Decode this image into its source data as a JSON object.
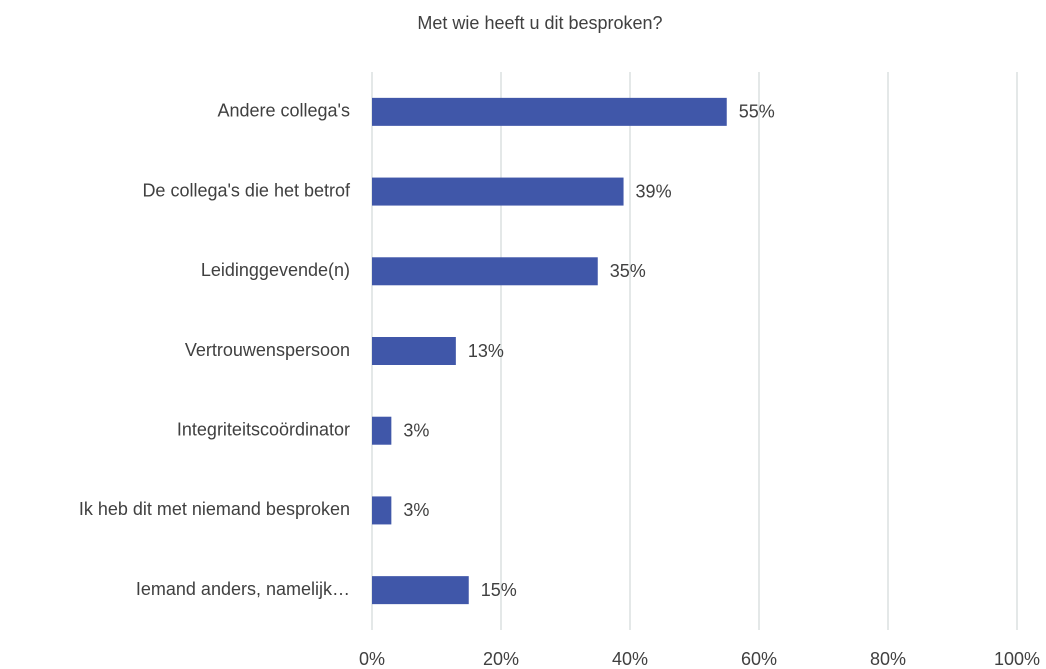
{
  "chart_data": {
    "type": "bar",
    "orientation": "horizontal",
    "title": "Met wie heeft u dit besproken?",
    "categories": [
      "Andere collega's",
      "De collega's die het betrof",
      "Leidinggevende(n)",
      "Vertrouwenspersoon",
      "Integriteitscoördinator",
      "Ik heb dit met niemand besproken",
      "Iemand anders, namelijk…"
    ],
    "values": [
      55,
      39,
      35,
      13,
      3,
      3,
      15
    ],
    "value_labels": [
      "55%",
      "39%",
      "35%",
      "13%",
      "3%",
      "3%",
      "15%"
    ],
    "color": "#4057a9",
    "xlim": [
      0,
      100
    ],
    "xticks": [
      {
        "value": 0,
        "label": "0%"
      },
      {
        "value": 20,
        "label": "20%"
      },
      {
        "value": 40,
        "label": "40%"
      },
      {
        "value": 60,
        "label": "60%"
      },
      {
        "value": 80,
        "label": "80%"
      },
      {
        "value": 100,
        "label": "100%"
      }
    ],
    "grid": true
  }
}
